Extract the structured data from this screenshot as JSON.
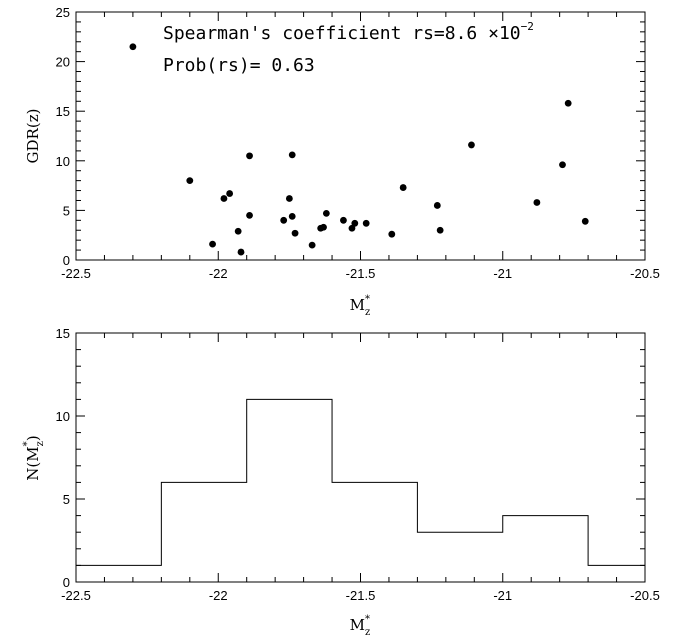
{
  "chart_data": [
    {
      "type": "scatter",
      "xlabel": {
        "main": "M",
        "sup": "*",
        "sub": "z"
      },
      "ylabel": "GDR(z)",
      "xlim": [
        -22.5,
        -20.5
      ],
      "ylim": [
        0,
        25
      ],
      "xticks": [
        -22.5,
        -22,
        -21.5,
        -21,
        -20.5
      ],
      "xtick_labels": [
        "-22.5",
        "-22",
        "-21.5",
        "-21",
        "-20.5"
      ],
      "yticks": [
        0,
        5,
        10,
        15,
        20,
        25
      ],
      "ytick_labels": [
        "0",
        "5",
        "10",
        "15",
        "20",
        "25"
      ],
      "annotations": {
        "line1": "Spearman's coefficient rs=8.6 ×10",
        "line1_exp": "−2",
        "line2": "Prob(rs)= 0.63"
      },
      "points": [
        {
          "x": -22.3,
          "y": 21.5
        },
        {
          "x": -22.1,
          "y": 8.0
        },
        {
          "x": -22.02,
          "y": 1.6
        },
        {
          "x": -21.98,
          "y": 6.2
        },
        {
          "x": -21.96,
          "y": 6.7
        },
        {
          "x": -21.93,
          "y": 2.9
        },
        {
          "x": -21.92,
          "y": 0.8
        },
        {
          "x": -21.89,
          "y": 10.5
        },
        {
          "x": -21.89,
          "y": 4.5
        },
        {
          "x": -21.77,
          "y": 4.0
        },
        {
          "x": -21.75,
          "y": 6.2
        },
        {
          "x": -21.74,
          "y": 10.6
        },
        {
          "x": -21.74,
          "y": 4.4
        },
        {
          "x": -21.73,
          "y": 2.7
        },
        {
          "x": -21.67,
          "y": 1.5
        },
        {
          "x": -21.64,
          "y": 3.2
        },
        {
          "x": -21.63,
          "y": 3.3
        },
        {
          "x": -21.62,
          "y": 4.7
        },
        {
          "x": -21.56,
          "y": 4.0
        },
        {
          "x": -21.53,
          "y": 3.2
        },
        {
          "x": -21.52,
          "y": 3.7
        },
        {
          "x": -21.48,
          "y": 3.7
        },
        {
          "x": -21.39,
          "y": 2.6
        },
        {
          "x": -21.35,
          "y": 7.3
        },
        {
          "x": -21.23,
          "y": 5.5
        },
        {
          "x": -21.22,
          "y": 3.0
        },
        {
          "x": -21.11,
          "y": 11.6
        },
        {
          "x": -20.88,
          "y": 5.8
        },
        {
          "x": -20.79,
          "y": 9.6
        },
        {
          "x": -20.77,
          "y": 15.8
        },
        {
          "x": -20.71,
          "y": 3.9
        }
      ]
    },
    {
      "type": "histogram",
      "xlabel": {
        "main": "M",
        "sup": "*",
        "sub": "z"
      },
      "ylabel": {
        "main": "N(M",
        "sup": "*",
        "sub": "z",
        "close": ")"
      },
      "xlim": [
        -22.5,
        -20.5
      ],
      "ylim": [
        0,
        15
      ],
      "xticks": [
        -22.5,
        -22,
        -21.5,
        -21,
        -20.5
      ],
      "xtick_labels": [
        "-22.5",
        "-22",
        "-21.5",
        "-21",
        "-20.5"
      ],
      "yticks": [
        0,
        5,
        10,
        15
      ],
      "ytick_labels": [
        "0",
        "5",
        "10",
        "15"
      ],
      "bins": [
        {
          "x0": -22.5,
          "x1": -22.2,
          "count": 1
        },
        {
          "x0": -22.2,
          "x1": -21.9,
          "count": 6
        },
        {
          "x0": -21.9,
          "x1": -21.6,
          "count": 11
        },
        {
          "x0": -21.6,
          "x1": -21.3,
          "count": 6
        },
        {
          "x0": -21.3,
          "x1": -21.0,
          "count": 3
        },
        {
          "x0": -21.0,
          "x1": -20.7,
          "count": 4
        },
        {
          "x0": -20.7,
          "x1": -20.5,
          "count": 1
        }
      ]
    }
  ]
}
